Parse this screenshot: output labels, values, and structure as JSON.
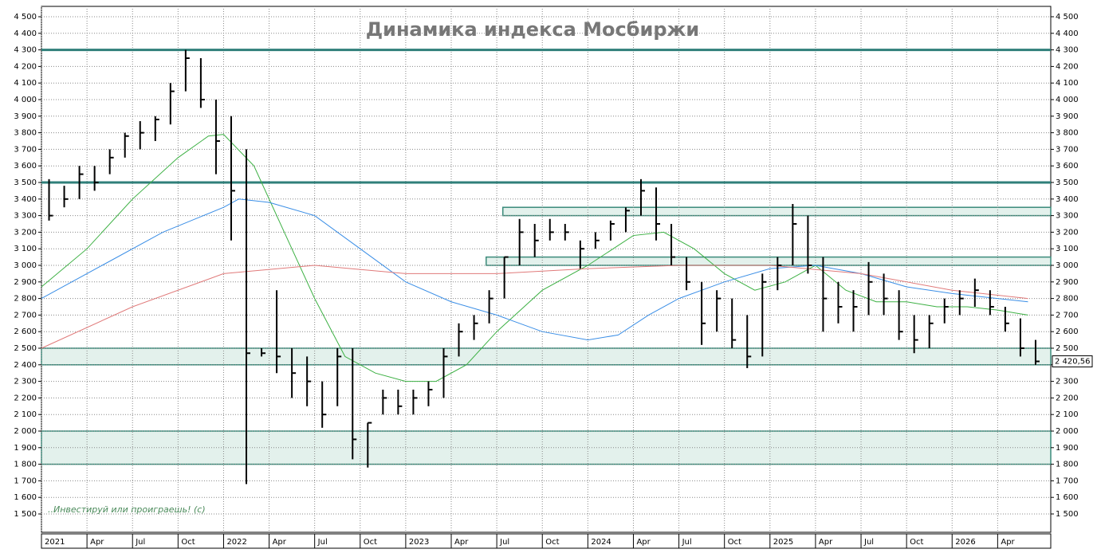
{
  "chart_data": {
    "type": "ohlc",
    "title": "Динамика индекса Мосбиржи",
    "annotation": "..Инвестируй или проиграешь! (с)",
    "x": [
      0.5,
      1.5,
      2.5,
      3.5,
      4.5,
      5.5,
      6.5,
      7.5,
      8.5,
      9.5,
      10.5,
      11.5,
      12.5,
      13.5,
      14.5,
      15.5,
      16.5,
      17.5,
      18.5,
      19.5,
      20.5,
      21.5,
      22.5,
      23.5,
      24.5,
      25.5,
      26.5,
      27.5,
      28.5,
      29.5,
      30.5,
      31.5,
      32.5,
      33.5,
      34.5,
      35.5,
      36.5,
      37.5,
      38.5,
      39.5,
      40.5,
      41.5,
      42.5,
      43.5,
      44.5,
      45.5,
      46.5,
      47.5,
      48.5,
      49.5,
      50.5,
      51.5,
      52.5,
      53.5,
      54.5,
      55.5,
      56.5,
      57.5,
      58.5,
      59.5,
      60.5,
      61.5,
      62.5,
      63.5,
      64.5,
      65.5
    ],
    "high": [
      3520,
      3480,
      3600,
      3600,
      3700,
      3800,
      3870,
      3900,
      4100,
      4300,
      4250,
      4000,
      3900,
      3700,
      2500,
      2850,
      2500,
      2450,
      2300,
      2500,
      2500,
      2050,
      2250,
      2250,
      2250,
      2300,
      2500,
      2650,
      2700,
      2850,
      3050,
      3280,
      3250,
      3280,
      3250,
      3150,
      3200,
      3270,
      3350,
      3520,
      3470,
      3250,
      3050,
      2900,
      2850,
      2800,
      2700,
      2950,
      3050,
      3370,
      3300,
      3050,
      2900,
      2850,
      3020,
      2950,
      2850,
      2700,
      2700,
      2800,
      2850,
      2920,
      2850,
      2750,
      2680,
      2550
    ],
    "low": [
      3270,
      3350,
      3400,
      3450,
      3550,
      3650,
      3700,
      3750,
      3850,
      4050,
      3950,
      3550,
      3150,
      1680,
      2450,
      2350,
      2200,
      2150,
      2020,
      2150,
      1830,
      1780,
      2100,
      2100,
      2100,
      2150,
      2200,
      2450,
      2550,
      2650,
      2800,
      3000,
      3050,
      3150,
      3150,
      2980,
      3100,
      3150,
      3200,
      3300,
      3150,
      3000,
      2850,
      2520,
      2600,
      2500,
      2380,
      2450,
      2850,
      3000,
      2950,
      2600,
      2650,
      2600,
      2700,
      2700,
      2550,
      2470,
      2500,
      2650,
      2700,
      2750,
      2700,
      2600,
      2450,
      2400
    ],
    "close": [
      3300,
      3400,
      3550,
      3500,
      3650,
      3780,
      3800,
      3880,
      4050,
      4250,
      4000,
      3750,
      3450,
      2470,
      2470,
      2450,
      2350,
      2300,
      2100,
      2450,
      1950,
      2050,
      2200,
      2150,
      2200,
      2250,
      2450,
      2600,
      2650,
      2800,
      3050,
      3200,
      3150,
      3200,
      3200,
      3100,
      3150,
      3250,
      3330,
      3450,
      3250,
      3050,
      2900,
      2650,
      2800,
      2550,
      2450,
      2900,
      3000,
      3250,
      3000,
      2800,
      2750,
      2750,
      2900,
      2800,
      2600,
      2550,
      2650,
      2750,
      2800,
      2850,
      2750,
      2650,
      2500,
      2420.56
    ],
    "color": "#000000",
    "averages": [
      {
        "color": "#3cb043",
        "x": [
          0,
          3,
          6,
          9,
          11,
          12,
          14,
          16,
          18,
          20,
          22,
          24,
          26,
          28,
          30,
          33,
          36,
          39,
          41,
          43,
          45,
          47,
          49,
          51,
          53,
          55,
          57,
          59,
          61,
          63,
          65
        ],
        "values": [
          2870,
          3100,
          3400,
          3650,
          3780,
          3790,
          3600,
          3200,
          2800,
          2450,
          2350,
          2300,
          2300,
          2400,
          2600,
          2850,
          3000,
          3180,
          3200,
          3100,
          2950,
          2850,
          2900,
          3000,
          2850,
          2780,
          2780,
          2750,
          2750,
          2730,
          2700
        ]
      },
      {
        "color": "#3a8ee6",
        "x": [
          0,
          4,
          8,
          12,
          13,
          15,
          18,
          21,
          24,
          27,
          30,
          33,
          36,
          38,
          40,
          42,
          45,
          48,
          51,
          54,
          57,
          60,
          63,
          65
        ],
        "values": [
          2800,
          3000,
          3200,
          3350,
          3400,
          3380,
          3300,
          3100,
          2900,
          2780,
          2700,
          2600,
          2550,
          2580,
          2700,
          2800,
          2900,
          2980,
          3000,
          2950,
          2870,
          2830,
          2800,
          2780
        ]
      },
      {
        "color": "#e07a7a",
        "x": [
          0,
          6,
          12,
          18,
          24,
          30,
          36,
          42,
          48,
          54,
          60,
          65
        ],
        "values": [
          2500,
          2750,
          2950,
          3000,
          2950,
          2950,
          2980,
          3000,
          3000,
          2950,
          2850,
          2800
        ]
      }
    ],
    "levels": [
      4300,
      3500
    ],
    "zones": [
      {
        "from": 3300,
        "to": 3350,
        "x_start": 30.4
      },
      {
        "from": 3000,
        "to": 3050,
        "x_start": 29.3
      },
      {
        "from": 2400,
        "to": 2500,
        "x_start": 0
      },
      {
        "from": 1800,
        "to": 2000,
        "x_start": 0
      }
    ],
    "last_value": {
      "value": 2420.56,
      "label": "2 420,56"
    },
    "xlim": [
      0,
      66.5
    ],
    "ylim": [
      1500,
      4500
    ],
    "xticks": [
      {
        "value": 0,
        "label": "2021"
      },
      {
        "value": 3,
        "label": "Apr"
      },
      {
        "value": 6,
        "label": "Jul"
      },
      {
        "value": 9,
        "label": "Oct"
      },
      {
        "value": 12,
        "label": "2022"
      },
      {
        "value": 15,
        "label": "Apr"
      },
      {
        "value": 18,
        "label": "Jul"
      },
      {
        "value": 21,
        "label": "Oct"
      },
      {
        "value": 24,
        "label": "2023"
      },
      {
        "value": 27,
        "label": "Apr"
      },
      {
        "value": 30,
        "label": "Jul"
      },
      {
        "value": 33,
        "label": "Oct"
      },
      {
        "value": 36,
        "label": "2024"
      },
      {
        "value": 39,
        "label": "Apr"
      },
      {
        "value": 42,
        "label": "Jul"
      },
      {
        "value": 45,
        "label": "Oct"
      },
      {
        "value": 48,
        "label": "2025"
      },
      {
        "value": 51,
        "label": "Apr"
      },
      {
        "value": 54,
        "label": "Jul"
      },
      {
        "value": 57,
        "label": "Oct"
      },
      {
        "value": 60,
        "label": "2026"
      },
      {
        "value": 63,
        "label": "Apr"
      }
    ],
    "yticks": [
      {
        "value": 1500,
        "label": "1 500"
      },
      {
        "value": 1600,
        "label": "1 600"
      },
      {
        "value": 1700,
        "label": "1 700"
      },
      {
        "value": 1800,
        "label": "1 800"
      },
      {
        "value": 1900,
        "label": "1 900"
      },
      {
        "value": 2000,
        "label": "2 000"
      },
      {
        "value": 2100,
        "label": "2 100"
      },
      {
        "value": 2200,
        "label": "2 200"
      },
      {
        "value": 2300,
        "label": "2 300"
      },
      {
        "value": 2400,
        "label": "2 400"
      },
      {
        "value": 2500,
        "label": "2 500"
      },
      {
        "value": 2600,
        "label": "2 600"
      },
      {
        "value": 2700,
        "label": "2 700"
      },
      {
        "value": 2800,
        "label": "2 800"
      },
      {
        "value": 2900,
        "label": "2 900"
      },
      {
        "value": 3000,
        "label": "3 000"
      },
      {
        "value": 3100,
        "label": "3 100"
      },
      {
        "value": 3200,
        "label": "3 200"
      },
      {
        "value": 3300,
        "label": "3 300"
      },
      {
        "value": 3400,
        "label": "3 400"
      },
      {
        "value": 3500,
        "label": "3 500"
      },
      {
        "value": 3600,
        "label": "3 600"
      },
      {
        "value": 3700,
        "label": "3 700"
      },
      {
        "value": 3800,
        "label": "3 800"
      },
      {
        "value": 3900,
        "label": "3 900"
      },
      {
        "value": 4000,
        "label": "4 000"
      },
      {
        "value": 4100,
        "label": "4 100"
      },
      {
        "value": 4200,
        "label": "4 200"
      },
      {
        "value": 4300,
        "label": "4 300"
      },
      {
        "value": 4400,
        "label": "4 400"
      },
      {
        "value": 4500,
        "label": "4 500"
      }
    ],
    "grid": true
  }
}
